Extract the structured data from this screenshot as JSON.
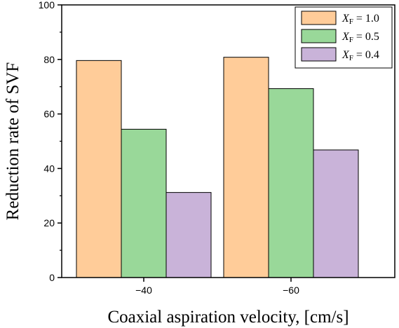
{
  "chart_data": {
    "type": "bar",
    "categories": [
      "−40",
      "−60"
    ],
    "series": [
      {
        "name_sym": "X",
        "name_sub": "F",
        "name_rest": " = 1.0",
        "values": [
          79.6,
          80.8
        ],
        "color": "#ffcc99"
      },
      {
        "name_sym": "X",
        "name_sub": "F",
        "name_rest": " = 0.5",
        "values": [
          54.4,
          69.3
        ],
        "color": "#99d899"
      },
      {
        "name_sym": "X",
        "name_sub": "F",
        "name_rest": " = 0.4",
        "values": [
          31.2,
          46.8
        ],
        "color": "#c9b3d9"
      }
    ],
    "xlabel": "Coaxial aspiration velocity, [cm/s]",
    "ylabel": "Reduction rate of SVF",
    "ylim": [
      0,
      100
    ],
    "yticks": [
      0,
      20,
      40,
      60,
      80,
      100
    ],
    "legend_position": "top-right"
  }
}
